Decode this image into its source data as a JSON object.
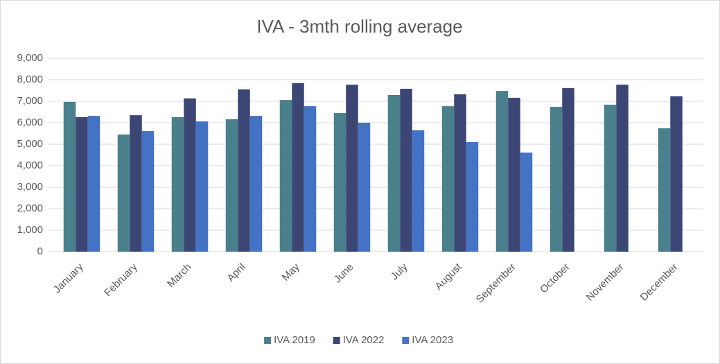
{
  "chart_data": {
    "type": "bar",
    "title": "IVA - 3mth rolling average",
    "categories": [
      "January",
      "February",
      "March",
      "April",
      "May",
      "June",
      "July",
      "August",
      "September",
      "October",
      "November",
      "December"
    ],
    "series": [
      {
        "name": "IVA 2019",
        "color": "#4a7f8c",
        "values": [
          6970,
          5450,
          6260,
          6160,
          7060,
          6450,
          7290,
          6770,
          7480,
          6740,
          6840,
          5740
        ]
      },
      {
        "name": "IVA 2022",
        "color": "#3b4675",
        "values": [
          6260,
          6350,
          7130,
          7550,
          7840,
          7770,
          7580,
          7320,
          7160,
          7610,
          7770,
          7230
        ]
      },
      {
        "name": "IVA 2023",
        "color": "#4472c4",
        "values": [
          6320,
          5610,
          6060,
          6320,
          6770,
          6000,
          5650,
          5100,
          4610,
          null,
          null,
          null
        ]
      }
    ],
    "ylim": [
      0,
      9000
    ],
    "yticks": [
      0,
      {
        "value": 1000,
        "label": "1,000"
      },
      {
        "value": 2000,
        "label": "2,000"
      },
      {
        "value": 3000,
        "label": "3,000"
      },
      {
        "value": 4000,
        "label": "4,000"
      },
      {
        "value": 5000,
        "label": "5,000"
      },
      {
        "value": 6000,
        "label": "6,000"
      },
      {
        "value": 7000,
        "label": "7,000"
      },
      {
        "value": 8000,
        "label": "8,000"
      },
      {
        "value": 9000,
        "label": "9,000"
      }
    ],
    "grid": true,
    "legend": "bottom"
  }
}
